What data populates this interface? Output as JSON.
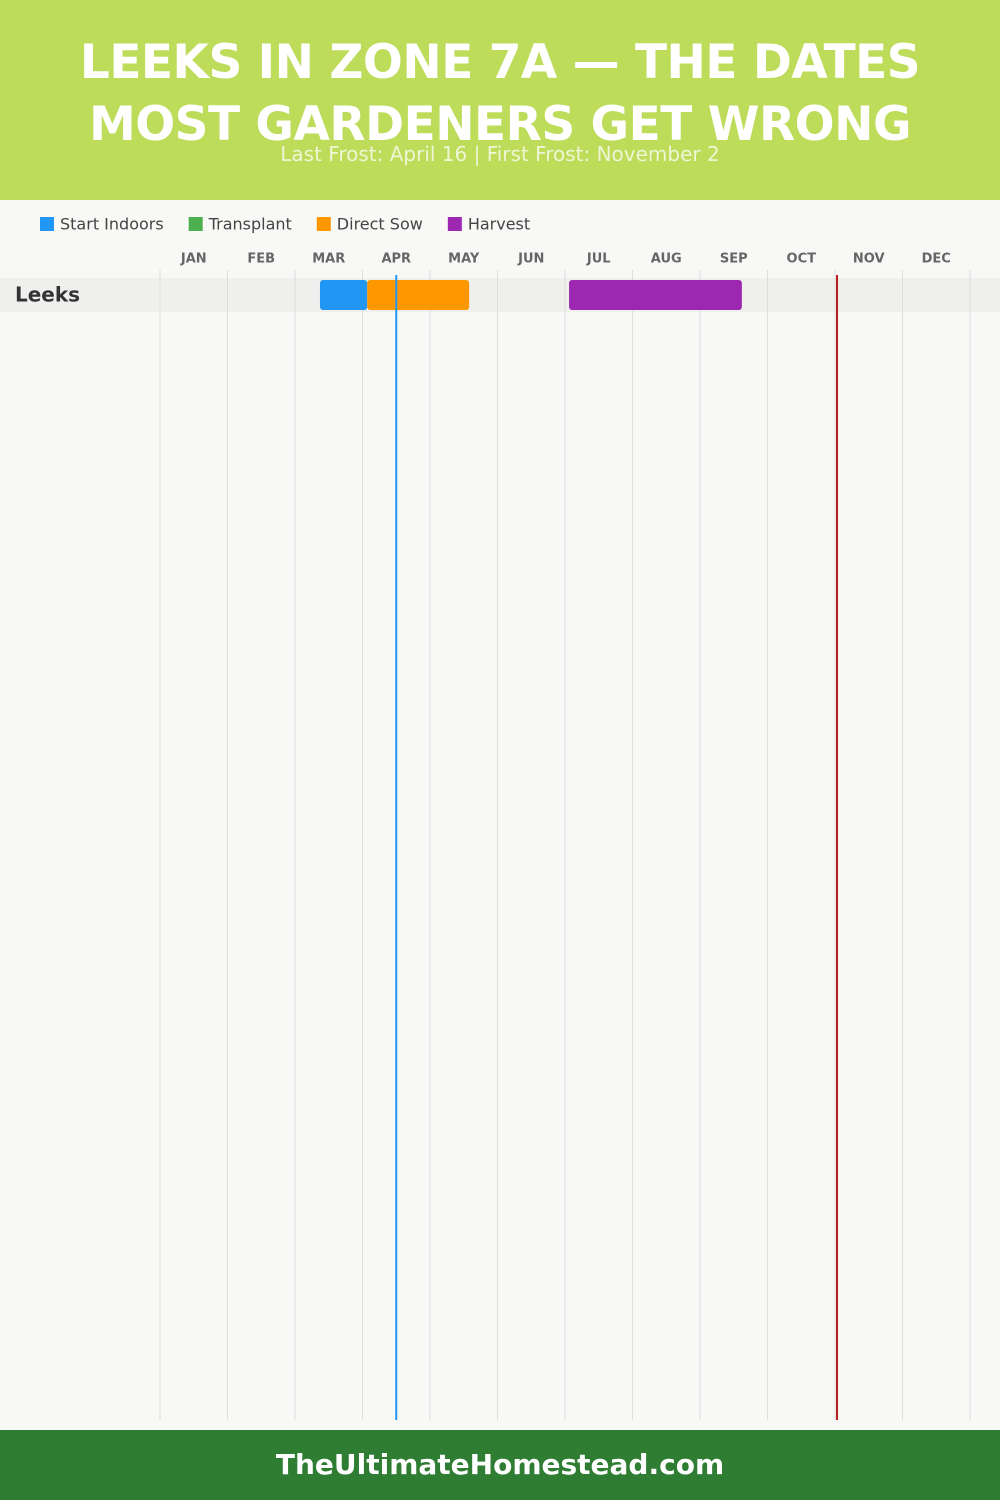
{
  "chart_data": {
    "type": "gantt",
    "title": "LEEKS IN ZONE 7A — THE DATES MOST GARDENERS GET WRONG",
    "subtitle": "Last Frost: April 16 | First Frost: November 2",
    "rows": [
      "Leeks"
    ],
    "xlim": [
      0,
      12
    ],
    "xticks": [
      {
        "value": 0.5,
        "label": "JAN"
      },
      {
        "value": 1.5,
        "label": "FEB"
      },
      {
        "value": 2.5,
        "label": "MAR"
      },
      {
        "value": 3.5,
        "label": "APR"
      },
      {
        "value": 4.5,
        "label": "MAY"
      },
      {
        "value": 5.5,
        "label": "JUN"
      },
      {
        "value": 6.5,
        "label": "JUL"
      },
      {
        "value": 7.5,
        "label": "AUG"
      },
      {
        "value": 8.5,
        "label": "SEP"
      },
      {
        "value": 9.5,
        "label": "OCT"
      },
      {
        "value": 10.5,
        "label": "NOV"
      },
      {
        "value": 11.5,
        "label": "DEC"
      }
    ],
    "series": [
      {
        "name": "Start Indoors",
        "color": "#2196f3",
        "segments": [
          [
            2.37,
            3.07
          ]
        ]
      },
      {
        "name": "Transplant",
        "color": "#4caf50",
        "segments": []
      },
      {
        "name": "Direct Sow",
        "color": "#ff9800",
        "segments": [
          [
            3.07,
            4.58
          ]
        ]
      },
      {
        "name": "Harvest",
        "color": "#9c27b0",
        "segments": [
          [
            6.06,
            8.62
          ]
        ]
      }
    ],
    "frost_lines": [
      {
        "value": 3.5,
        "color": "#2196f3"
      },
      {
        "value": 10.03,
        "color": "#b71c1c"
      }
    ]
  },
  "footer": "TheUltimateHomestead.com"
}
